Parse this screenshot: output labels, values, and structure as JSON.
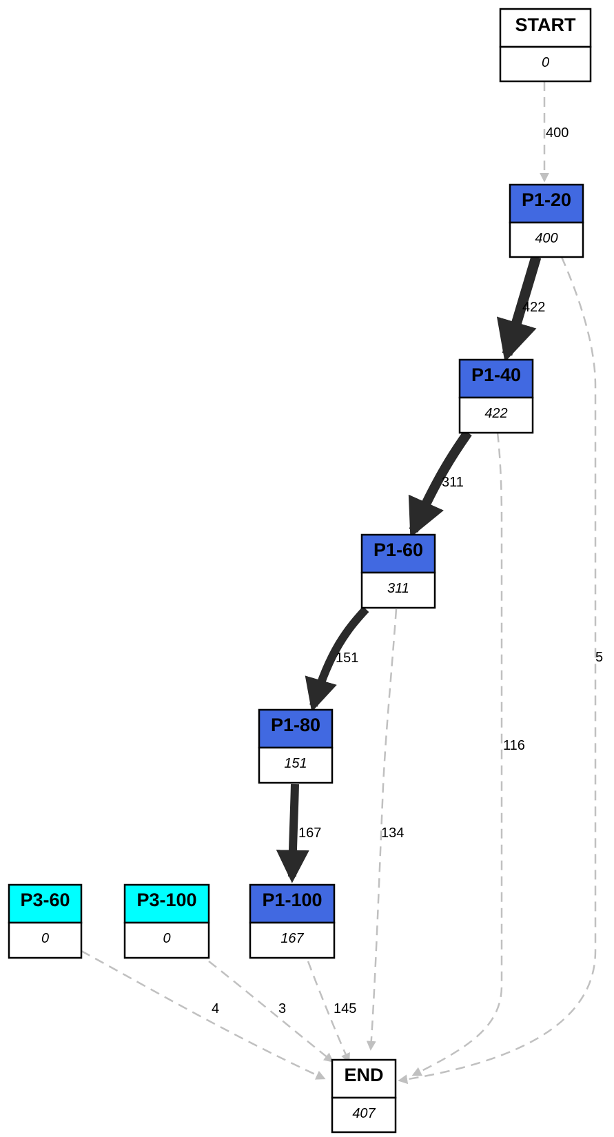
{
  "colors": {
    "start_end": "#ffffff",
    "p1": "#4169e1",
    "p3": "#00ffff",
    "strong_edge": "#2a2a2a",
    "weak_edge": "#c0c0c0",
    "border": "#000000"
  },
  "nodes": [
    {
      "id": "start",
      "label": "START",
      "count": "0",
      "fill": "start_end"
    },
    {
      "id": "p1_20",
      "label": "P1-20",
      "count": "400",
      "fill": "p1"
    },
    {
      "id": "p1_40",
      "label": "P1-40",
      "count": "422",
      "fill": "p1"
    },
    {
      "id": "p1_60",
      "label": "P1-60",
      "count": "311",
      "fill": "p1"
    },
    {
      "id": "p1_80",
      "label": "P1-80",
      "count": "151",
      "fill": "p1"
    },
    {
      "id": "p3_60",
      "label": "P3-60",
      "count": "0",
      "fill": "p3"
    },
    {
      "id": "p3_100",
      "label": "P3-100",
      "count": "0",
      "fill": "p3"
    },
    {
      "id": "p1_100",
      "label": "P1-100",
      "count": "167",
      "fill": "p1"
    },
    {
      "id": "end",
      "label": "END",
      "count": "407",
      "fill": "start_end"
    }
  ],
  "edges": [
    {
      "from": "start",
      "to": "p1_20",
      "label": "400",
      "style": "dashed"
    },
    {
      "from": "p1_20",
      "to": "p1_40",
      "label": "422",
      "style": "solid"
    },
    {
      "from": "p1_20",
      "to": "end",
      "label": "5",
      "style": "dashed"
    },
    {
      "from": "p1_40",
      "to": "p1_60",
      "label": "311",
      "style": "solid"
    },
    {
      "from": "p1_40",
      "to": "end",
      "label": "116",
      "style": "dashed"
    },
    {
      "from": "p1_60",
      "to": "p1_80",
      "label": "151",
      "style": "solid"
    },
    {
      "from": "p1_60",
      "to": "end",
      "label": "134",
      "style": "dashed"
    },
    {
      "from": "p1_80",
      "to": "p1_100",
      "label": "167",
      "style": "solid"
    },
    {
      "from": "p3_60",
      "to": "end",
      "label": "4",
      "style": "dashed"
    },
    {
      "from": "p3_100",
      "to": "end",
      "label": "3",
      "style": "dashed"
    },
    {
      "from": "p1_100",
      "to": "end",
      "label": "145",
      "style": "dashed"
    }
  ]
}
